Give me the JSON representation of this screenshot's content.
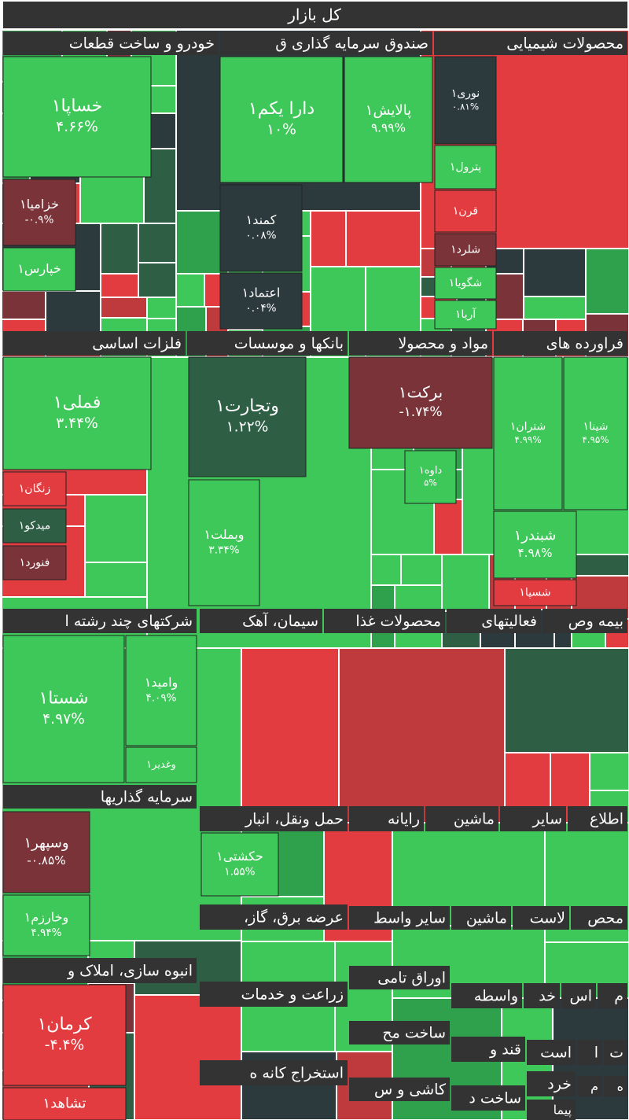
{
  "header": {
    "title": "کل بازار"
  },
  "sectors": [
    {
      "label": "خودرو و ساخت قطعات",
      "tiles": [
        {
          "label": "خساپا۱",
          "change": "۴.۶۶%"
        },
        {
          "label": "خزامیا۱",
          "change": "-۰.۹%"
        },
        {
          "label": "خپارس۱"
        }
      ]
    },
    {
      "label": "صندوق سرمایه گذاری ق",
      "tiles": [
        {
          "label": "دارا یکم۱",
          "change": "۱۰%"
        },
        {
          "label": "پالایش۱",
          "change": "۹.۹۹%"
        },
        {
          "label": "کمند۱",
          "change": "۰.۰۸%"
        },
        {
          "label": "اعتماد۱",
          "change": "۰.۰۴%"
        }
      ]
    },
    {
      "label": "محصولات شیمیایی",
      "tiles": [
        {
          "label": "نوری۱",
          "change": "۰.۸۱%"
        },
        {
          "label": "پترول۱"
        },
        {
          "label": "قرن۱"
        },
        {
          "label": "شلرد۱"
        },
        {
          "label": "شگویا۱"
        },
        {
          "label": "آریا۱"
        }
      ]
    },
    {
      "label": "فلزات اساسی",
      "tiles": [
        {
          "label": "فملی۱",
          "change": "۳.۴۴%"
        },
        {
          "label": "زنگان۱"
        },
        {
          "label": "میدکو۱"
        },
        {
          "label": "فنورد۱"
        }
      ]
    },
    {
      "label": "بانکها و موسسات",
      "tiles": [
        {
          "label": "وتجارت۱",
          "change": "۱.۲۲%"
        },
        {
          "label": "وبملت۱",
          "change": "۳.۳۴%"
        }
      ]
    },
    {
      "label": "مواد و محصولا",
      "tiles": [
        {
          "label": "برکت۱",
          "change": "-۱.۷۴%"
        },
        {
          "label": "داوه۱",
          "change": "۵%"
        }
      ]
    },
    {
      "label": "فراورده های",
      "tiles": [
        {
          "label": "شتران۱",
          "change": "۴.۹۹%"
        },
        {
          "label": "شپنا۱",
          "change": "۴.۹۵%"
        },
        {
          "label": "شبندر۱",
          "change": "۴.۹۸%"
        },
        {
          "label": "شسپا۱"
        }
      ]
    },
    {
      "label": "شرکتهای چند رشته ا",
      "tiles": [
        {
          "label": "شستا۱",
          "change": "۴.۹۷%"
        },
        {
          "label": "وامید۱",
          "change": "۴.۰۹%"
        },
        {
          "label": "وغدیر۱"
        }
      ]
    },
    {
      "label": "سیمان، آهک"
    },
    {
      "label": "محصولات غذا"
    },
    {
      "label": "فعالیتهای"
    },
    {
      "label": "بیمه وص"
    },
    {
      "label": "سرمایه گذاریها",
      "tiles": [
        {
          "label": "وسپهر۱",
          "change": "-۰.۸۵%"
        },
        {
          "label": "وخارزم۱",
          "change": "۴.۹۴%"
        }
      ]
    },
    {
      "label": "انبوه سازی، املاک و",
      "tiles": [
        {
          "label": "کرمان۱",
          "change": "-۴.۴%"
        },
        {
          "label": "تشاهد۱"
        }
      ]
    },
    {
      "label": "حمل ونقل، انبار",
      "tiles": [
        {
          "label": "حکشتی۱",
          "change": "۱.۵۵%"
        }
      ]
    },
    {
      "label": "رایانه"
    },
    {
      "label": "ماشین"
    },
    {
      "label": "سایر"
    },
    {
      "label": "اطلاع"
    },
    {
      "label": "،عرضه برق، گاز"
    },
    {
      "label": "سایر واسط"
    },
    {
      "label": "ماشین"
    },
    {
      "label": "لاست"
    },
    {
      "label": "محص"
    },
    {
      "label": "اوراق تامی"
    },
    {
      "label": "زراعت و خدمات"
    },
    {
      "label": "واسطه"
    },
    {
      "label": "خد"
    },
    {
      "label": "اس"
    },
    {
      "label": "م"
    },
    {
      "label": "ساخت مح"
    },
    {
      "label": "قند و"
    },
    {
      "label": "است"
    },
    {
      "label": "ا"
    },
    {
      "label": "ت"
    },
    {
      "label": "استخراج کانه ه"
    },
    {
      "label": "کاشی و س"
    },
    {
      "label": "ساخت د"
    },
    {
      "label": "خرد"
    },
    {
      "label": "م"
    },
    {
      "label": "ه"
    },
    {
      "label": "پیما"
    }
  ]
}
